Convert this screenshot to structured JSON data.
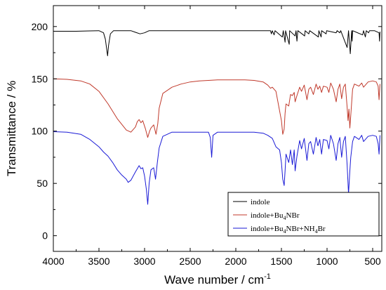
{
  "chart_data": {
    "type": "line",
    "xlabel": "Wave number / cm",
    "xlabel_sup": "-1",
    "ylabel": "Transmittance / %",
    "xlim": [
      4000,
      400
    ],
    "ylim": [
      -15,
      220
    ],
    "x_reversed": true,
    "x_ticks": [
      4000,
      3500,
      3000,
      2500,
      2000,
      1500,
      1000,
      500
    ],
    "y_ticks": [
      0,
      50,
      100,
      150,
      200
    ],
    "grid": false,
    "legend_position": "bottom-right",
    "series": [
      {
        "name": "indole",
        "legend": {
          "parts": [
            [
              "indole",
              false
            ]
          ]
        },
        "color": "#000000",
        "points": [
          [
            4000,
            195.5
          ],
          [
            3750,
            195.5
          ],
          [
            3600,
            195.8
          ],
          [
            3500,
            196
          ],
          [
            3450,
            194
          ],
          [
            3430,
            188
          ],
          [
            3415,
            178
          ],
          [
            3405,
            172
          ],
          [
            3395,
            182
          ],
          [
            3375,
            193
          ],
          [
            3340,
            196
          ],
          [
            3250,
            196
          ],
          [
            3150,
            196
          ],
          [
            3100,
            194.5
          ],
          [
            3050,
            193
          ],
          [
            3000,
            194
          ],
          [
            2950,
            196
          ],
          [
            2700,
            196
          ],
          [
            2400,
            196
          ],
          [
            2000,
            196
          ],
          [
            1800,
            196
          ],
          [
            1620,
            196
          ],
          [
            1610,
            193
          ],
          [
            1600,
            196
          ],
          [
            1580,
            192
          ],
          [
            1570,
            196
          ],
          [
            1490,
            190
          ],
          [
            1480,
            196
          ],
          [
            1460,
            185
          ],
          [
            1455,
            196
          ],
          [
            1415,
            183
          ],
          [
            1410,
            196
          ],
          [
            1350,
            191
          ],
          [
            1340,
            196
          ],
          [
            1330,
            186
          ],
          [
            1320,
            196
          ],
          [
            1245,
            191
          ],
          [
            1240,
            196
          ],
          [
            1200,
            193
          ],
          [
            1190,
            196
          ],
          [
            1095,
            190
          ],
          [
            1090,
            196
          ],
          [
            1065,
            190
          ],
          [
            1060,
            196
          ],
          [
            1010,
            193
          ],
          [
            1005,
            196
          ],
          [
            900,
            194
          ],
          [
            890,
            196
          ],
          [
            860,
            194
          ],
          [
            850,
            196
          ],
          [
            780,
            180
          ],
          [
            765,
            196
          ],
          [
            745,
            174
          ],
          [
            730,
            196
          ],
          [
            725,
            186
          ],
          [
            720,
            196
          ],
          [
            610,
            192
          ],
          [
            600,
            196
          ],
          [
            580,
            190
          ],
          [
            570,
            196
          ],
          [
            545,
            194
          ],
          [
            535,
            196
          ],
          [
            480,
            196
          ],
          [
            430,
            194
          ],
          [
            425,
            186
          ],
          [
            420,
            195
          ]
        ]
      },
      {
        "name": "indole+Bu4NBr",
        "legend": {
          "parts": [
            [
              "indole+Bu",
              false
            ],
            [
              "4",
              true
            ],
            [
              "NBr",
              false
            ]
          ]
        },
        "color": "#c0392b",
        "points": [
          [
            4000,
            150
          ],
          [
            3850,
            149.5
          ],
          [
            3700,
            148
          ],
          [
            3600,
            145
          ],
          [
            3500,
            138
          ],
          [
            3400,
            126
          ],
          [
            3300,
            112
          ],
          [
            3200,
            101
          ],
          [
            3150,
            99
          ],
          [
            3100,
            104
          ],
          [
            3080,
            109
          ],
          [
            3060,
            111
          ],
          [
            3040,
            108
          ],
          [
            3020,
            110
          ],
          [
            2990,
            102
          ],
          [
            2965,
            94
          ],
          [
            2945,
            100
          ],
          [
            2930,
            103
          ],
          [
            2900,
            106
          ],
          [
            2875,
            97
          ],
          [
            2855,
            107
          ],
          [
            2840,
            122
          ],
          [
            2800,
            136
          ],
          [
            2700,
            142
          ],
          [
            2600,
            145
          ],
          [
            2500,
            147
          ],
          [
            2400,
            148
          ],
          [
            2300,
            148.5
          ],
          [
            2200,
            149
          ],
          [
            2100,
            149
          ],
          [
            2000,
            149
          ],
          [
            1900,
            149
          ],
          [
            1800,
            148.5
          ],
          [
            1700,
            147
          ],
          [
            1650,
            144
          ],
          [
            1620,
            141
          ],
          [
            1600,
            142
          ],
          [
            1560,
            138
          ],
          [
            1500,
            110
          ],
          [
            1485,
            97
          ],
          [
            1470,
            102
          ],
          [
            1460,
            117
          ],
          [
            1450,
            126
          ],
          [
            1420,
            124
          ],
          [
            1400,
            135
          ],
          [
            1380,
            134
          ],
          [
            1360,
            137
          ],
          [
            1350,
            128
          ],
          [
            1330,
            134
          ],
          [
            1300,
            142
          ],
          [
            1280,
            138
          ],
          [
            1250,
            144
          ],
          [
            1220,
            130
          ],
          [
            1200,
            140
          ],
          [
            1180,
            142
          ],
          [
            1150,
            135
          ],
          [
            1120,
            145
          ],
          [
            1100,
            140
          ],
          [
            1080,
            143
          ],
          [
            1060,
            137
          ],
          [
            1040,
            143
          ],
          [
            1000,
            142
          ],
          [
            980,
            137
          ],
          [
            960,
            146
          ],
          [
            930,
            140
          ],
          [
            900,
            128
          ],
          [
            880,
            140
          ],
          [
            860,
            145
          ],
          [
            840,
            131
          ],
          [
            820,
            142
          ],
          [
            800,
            145
          ],
          [
            780,
            123
          ],
          [
            770,
            110
          ],
          [
            760,
            121
          ],
          [
            750,
            103
          ],
          [
            740,
            115
          ],
          [
            720,
            140
          ],
          [
            700,
            145
          ],
          [
            650,
            143
          ],
          [
            620,
            146
          ],
          [
            600,
            142
          ],
          [
            550,
            147
          ],
          [
            500,
            148
          ],
          [
            460,
            147
          ],
          [
            440,
            143
          ],
          [
            430,
            130
          ],
          [
            420,
            145
          ]
        ]
      },
      {
        "name": "indole+Bu4NBr+NH4Br",
        "legend": {
          "parts": [
            [
              "indole+Bu",
              false
            ],
            [
              "4",
              true
            ],
            [
              "NBr+NH",
              false
            ],
            [
              "4",
              true
            ],
            [
              "Br",
              false
            ]
          ]
        },
        "color": "#1a1ad6",
        "points": [
          [
            4000,
            99.5
          ],
          [
            3850,
            99
          ],
          [
            3700,
            97
          ],
          [
            3600,
            92
          ],
          [
            3500,
            85
          ],
          [
            3450,
            80
          ],
          [
            3400,
            76
          ],
          [
            3350,
            70
          ],
          [
            3300,
            63
          ],
          [
            3250,
            58
          ],
          [
            3200,
            54
          ],
          [
            3180,
            51
          ],
          [
            3150,
            53
          ],
          [
            3100,
            61
          ],
          [
            3060,
            67
          ],
          [
            3040,
            64
          ],
          [
            3020,
            65
          ],
          [
            3000,
            57
          ],
          [
            2980,
            44
          ],
          [
            2965,
            30
          ],
          [
            2950,
            50
          ],
          [
            2930,
            63
          ],
          [
            2900,
            65
          ],
          [
            2880,
            54
          ],
          [
            2860,
            70
          ],
          [
            2840,
            84
          ],
          [
            2800,
            95
          ],
          [
            2700,
            99
          ],
          [
            2500,
            99
          ],
          [
            2300,
            99
          ],
          [
            2280,
            94
          ],
          [
            2265,
            75
          ],
          [
            2250,
            96
          ],
          [
            2200,
            99
          ],
          [
            2000,
            99
          ],
          [
            1800,
            99
          ],
          [
            1700,
            98
          ],
          [
            1650,
            96
          ],
          [
            1600,
            93
          ],
          [
            1560,
            85
          ],
          [
            1520,
            82
          ],
          [
            1500,
            70
          ],
          [
            1485,
            54
          ],
          [
            1470,
            48
          ],
          [
            1460,
            62
          ],
          [
            1450,
            78
          ],
          [
            1420,
            70
          ],
          [
            1400,
            82
          ],
          [
            1380,
            68
          ],
          [
            1360,
            82
          ],
          [
            1350,
            62
          ],
          [
            1330,
            76
          ],
          [
            1300,
            91
          ],
          [
            1280,
            83
          ],
          [
            1250,
            93
          ],
          [
            1220,
            72
          ],
          [
            1200,
            88
          ],
          [
            1180,
            90
          ],
          [
            1150,
            78
          ],
          [
            1120,
            94
          ],
          [
            1100,
            86
          ],
          [
            1080,
            92
          ],
          [
            1060,
            78
          ],
          [
            1040,
            92
          ],
          [
            1000,
            91
          ],
          [
            980,
            83
          ],
          [
            960,
            96
          ],
          [
            930,
            88
          ],
          [
            900,
            72
          ],
          [
            880,
            88
          ],
          [
            860,
            94
          ],
          [
            840,
            75
          ],
          [
            820,
            90
          ],
          [
            800,
            95
          ],
          [
            780,
            68
          ],
          [
            765,
            40
          ],
          [
            750,
            62
          ],
          [
            740,
            75
          ],
          [
            720,
            90
          ],
          [
            700,
            95
          ],
          [
            650,
            92
          ],
          [
            620,
            96
          ],
          [
            600,
            90
          ],
          [
            550,
            95
          ],
          [
            500,
            96
          ],
          [
            460,
            95
          ],
          [
            440,
            88
          ],
          [
            430,
            78
          ],
          [
            420,
            96
          ]
        ]
      }
    ]
  }
}
